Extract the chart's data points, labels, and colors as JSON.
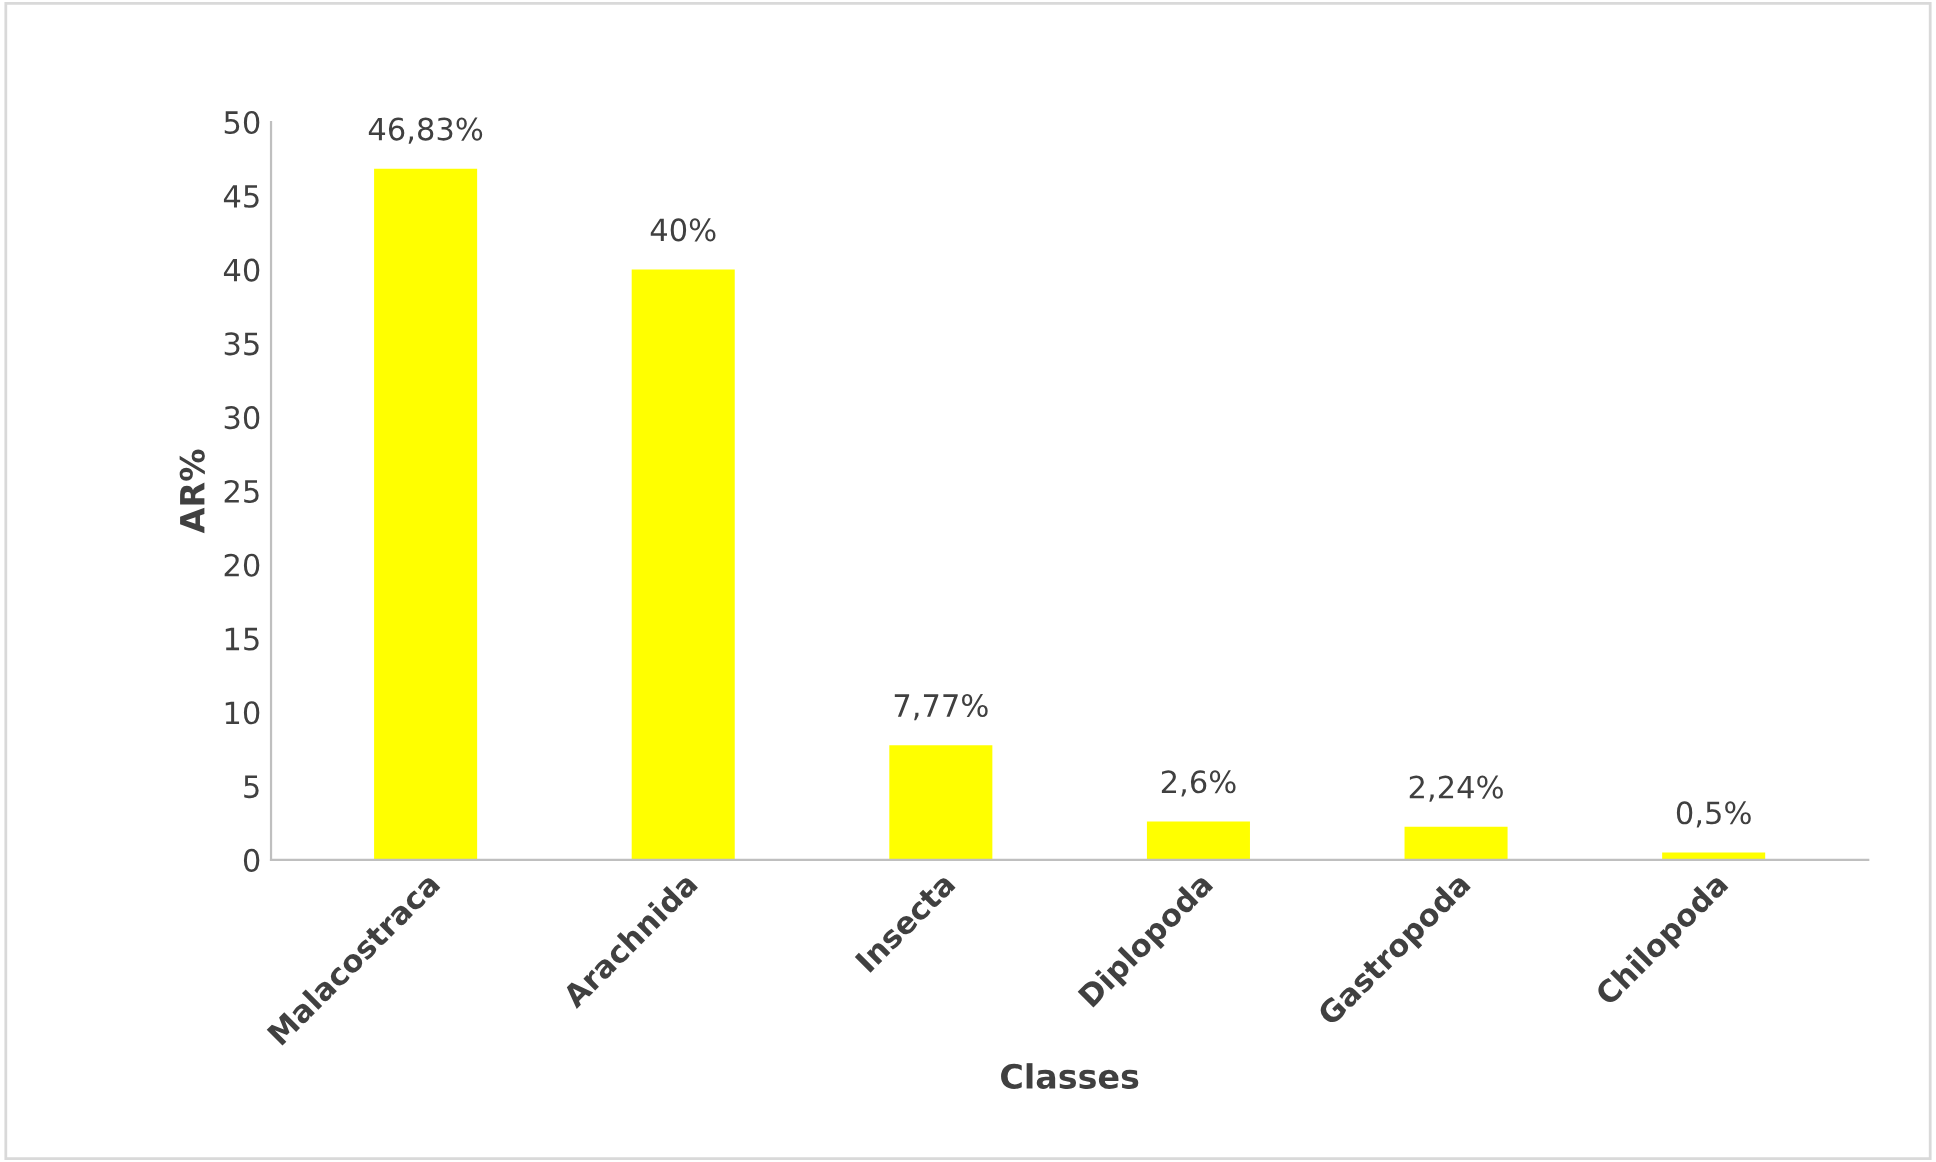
{
  "chart_data": {
    "type": "bar",
    "xlabel": "Classes",
    "ylabel": "AR%",
    "categories": [
      "Malacostraca",
      "Arachnida",
      "Insecta",
      "Diplopoda",
      "Gastropoda",
      "Chilopoda"
    ],
    "values": [
      46.83,
      40,
      7.77,
      2.6,
      2.24,
      0.5
    ],
    "value_labels": [
      "46,83%",
      "40%",
      "7,77%",
      "2,6%",
      "2,24%",
      "0,5%"
    ],
    "color": "#ffff00",
    "ylim": [
      0,
      50
    ],
    "yticks": [
      0,
      5,
      10,
      15,
      20,
      25,
      30,
      35,
      40,
      45,
      50
    ],
    "grid": false
  }
}
